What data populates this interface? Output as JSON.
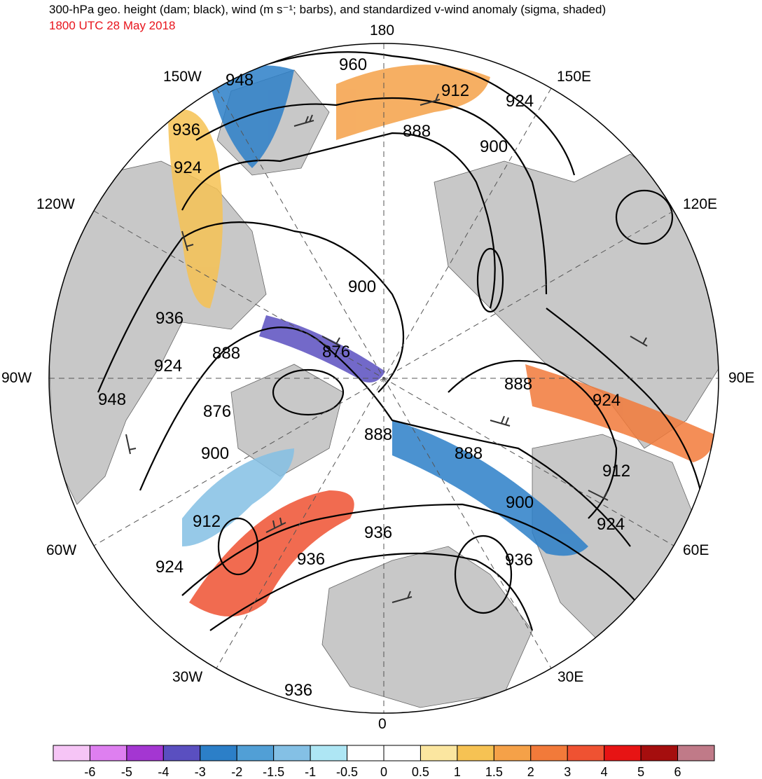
{
  "header": {
    "title": "300-hPa geo. height (dam; black), wind (m s⁻¹; barbs), and standardized v-wind anomaly (sigma, shaded)",
    "valid_time": "1800 UTC 28 May 2018"
  },
  "map": {
    "projection": "north polar stereographic",
    "longitude_labels": {
      "top": "180",
      "bottom": "0",
      "left": "90W",
      "right": "90E",
      "upper_left_1": "150W",
      "upper_left_2": "120W",
      "lower_left_1": "60W",
      "lower_left_2": "30W",
      "upper_right_1": "150E",
      "upper_right_2": "120E",
      "lower_right_1": "60E",
      "lower_right_2": "30E"
    },
    "contour_labels": [
      "960",
      "948",
      "912",
      "924",
      "936",
      "888",
      "900",
      "924",
      "936",
      "888",
      "924",
      "948",
      "876",
      "900",
      "876",
      "888",
      "888",
      "900",
      "888",
      "924",
      "912",
      "900",
      "924",
      "912",
      "936",
      "936",
      "924",
      "936",
      "936"
    ],
    "colors": {
      "land": "#c8c8c8",
      "ocean": "#ffffff",
      "contour": "#000000",
      "barb": "#333333"
    }
  },
  "colorbar": {
    "labels": [
      "-6",
      "-5",
      "-4",
      "-3",
      "-2",
      "-1.5",
      "-1",
      "-0.5",
      "0",
      "0.5",
      "1",
      "1.5",
      "2",
      "3",
      "4",
      "5",
      "6"
    ],
    "colors": [
      "#f6c5f6",
      "#de7ff0",
      "#a436d2",
      "#5a4fc0",
      "#2c7fc8",
      "#519fd6",
      "#84c0e5",
      "#aee6f4",
      "#ffffff",
      "#ffffff",
      "#fbe6a0",
      "#f6c253",
      "#f5a148",
      "#f27a3a",
      "#ef5232",
      "#e71414",
      "#a50e0e",
      "#c07a88"
    ]
  }
}
